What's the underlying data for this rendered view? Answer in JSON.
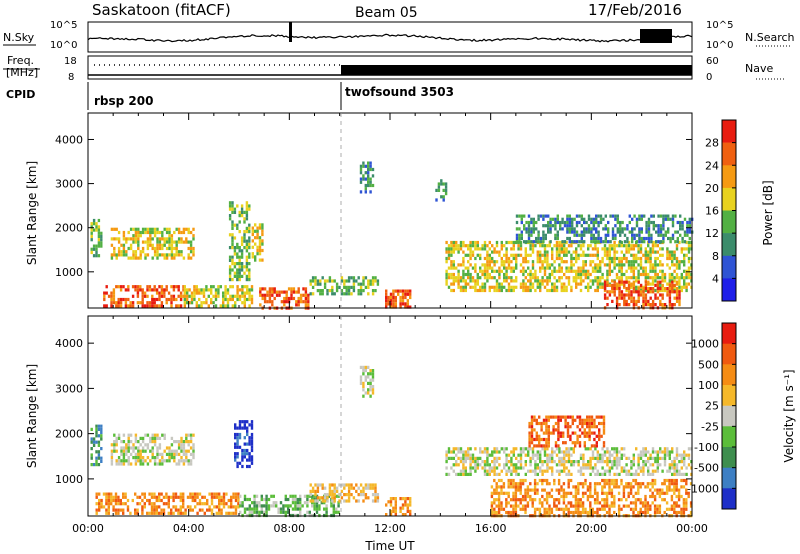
{
  "header": {
    "title": "Saskatoon (fitACF)",
    "beam": "Beam 05",
    "date": "17/Feb/2016"
  },
  "top_panels": {
    "nsky": {
      "left_label": "N.Sky",
      "right_label": "N.Search",
      "left_ticks": [
        "10^5",
        "10^0"
      ],
      "right_ticks": [
        "10^5",
        "10^0"
      ]
    },
    "freq": {
      "left_label_line1": "Freq.",
      "left_label_line2": "[MHz]",
      "left_ticks": [
        "18",
        "8"
      ],
      "right_label": "Nave",
      "right_ticks": [
        "60",
        "0"
      ]
    },
    "cpid": {
      "label": "CPID",
      "segments": [
        {
          "name": "rbsp 200",
          "start_hour": 0
        },
        {
          "name": "twofsound 3503",
          "start_hour": 10
        }
      ]
    }
  },
  "chart_data": [
    {
      "type": "heatmap",
      "quantity": "Power",
      "ylabel": "Slant Range [km]",
      "xlabel": "",
      "x_range_hours": [
        0,
        24
      ],
      "ylim": [
        180,
        4600
      ],
      "yticks": [
        1000,
        2000,
        3000,
        4000
      ],
      "colorbar": {
        "label": "Power [dB]",
        "ticks": [
          "4",
          "8",
          "12",
          "16",
          "20",
          "24",
          "28"
        ],
        "colors": [
          "#1f1fe8",
          "#2f54d4",
          "#3b8c6b",
          "#52b043",
          "#e8d21f",
          "#f59a12",
          "#f06010",
          "#e81c10"
        ]
      },
      "echo_regions": [
        {
          "t": [
            0.1,
            0.55
          ],
          "r": [
            1350,
            2200
          ],
          "level": 3
        },
        {
          "t": [
            0.9,
            4.2
          ],
          "r": [
            1300,
            2000
          ],
          "level": 4
        },
        {
          "t": [
            0.6,
            3.8
          ],
          "r": [
            200,
            700
          ],
          "level": 6
        },
        {
          "t": [
            3.8,
            6.5
          ],
          "r": [
            200,
            700
          ],
          "level": 4
        },
        {
          "t": [
            5.6,
            6.4
          ],
          "r": [
            800,
            2600
          ],
          "level": 3
        },
        {
          "t": [
            6.5,
            6.9
          ],
          "r": [
            1300,
            2100
          ],
          "level": 4
        },
        {
          "t": [
            6.8,
            8.8
          ],
          "r": [
            200,
            650
          ],
          "level": 6
        },
        {
          "t": [
            8.8,
            11.5
          ],
          "r": [
            500,
            900
          ],
          "level": 3
        },
        {
          "t": [
            11.8,
            12.8
          ],
          "r": [
            220,
            600
          ],
          "level": 6
        },
        {
          "t": [
            14.2,
            24.0
          ],
          "r": [
            600,
            1700
          ],
          "level": 4
        },
        {
          "t": [
            20.5,
            23.5
          ],
          "r": [
            200,
            800
          ],
          "level": 6
        },
        {
          "t": [
            17.0,
            24.0
          ],
          "r": [
            1700,
            2300
          ],
          "level": 2
        },
        {
          "t": [
            10.8,
            11.3
          ],
          "r": [
            2800,
            3500
          ],
          "level": 2
        },
        {
          "t": [
            13.8,
            14.2
          ],
          "r": [
            2600,
            3100
          ],
          "level": 2
        }
      ]
    },
    {
      "type": "heatmap",
      "quantity": "Velocity",
      "ylabel": "Slant Range [km]",
      "xlabel": "Time UT",
      "x_range_hours": [
        0,
        24
      ],
      "xticks": [
        "00:00",
        "04:00",
        "08:00",
        "12:00",
        "16:00",
        "20:00",
        "00:00"
      ],
      "ylim": [
        180,
        4600
      ],
      "yticks": [
        1000,
        2000,
        3000,
        4000
      ],
      "colorbar": {
        "label": "Velocity [m s⁻¹]",
        "ticks": [
          "1000",
          "500",
          "100",
          "25",
          "-25",
          "-100",
          "-500",
          "-1000"
        ],
        "colors": [
          "#1e2fc8",
          "#3d7fc4",
          "#3e8e4e",
          "#5bbd3a",
          "#c8c8c0",
          "#f5b82a",
          "#f58c14",
          "#f05a10",
          "#e81c10"
        ]
      },
      "echo_regions": [
        {
          "t": [
            0.1,
            0.55
          ],
          "r": [
            1350,
            2200
          ],
          "level": 2
        },
        {
          "t": [
            0.9,
            4.2
          ],
          "r": [
            1300,
            2000
          ],
          "level": 4
        },
        {
          "t": [
            0.3,
            6.0
          ],
          "r": [
            250,
            700
          ],
          "level": 6
        },
        {
          "t": [
            5.8,
            6.5
          ],
          "r": [
            1300,
            2300
          ],
          "level": 0
        },
        {
          "t": [
            6.0,
            10.0
          ],
          "r": [
            200,
            650
          ],
          "level": 3
        },
        {
          "t": [
            8.8,
            11.5
          ],
          "r": [
            500,
            900
          ],
          "level": 5
        },
        {
          "t": [
            11.8,
            12.8
          ],
          "r": [
            220,
            600
          ],
          "level": 6
        },
        {
          "t": [
            14.2,
            24.0
          ],
          "r": [
            1100,
            1700
          ],
          "level": 4
        },
        {
          "t": [
            16.0,
            24.0
          ],
          "r": [
            200,
            1000
          ],
          "level": 6
        },
        {
          "t": [
            17.5,
            20.5
          ],
          "r": [
            1700,
            2400
          ],
          "level": 7
        },
        {
          "t": [
            10.8,
            11.3
          ],
          "r": [
            2800,
            3500
          ],
          "level": 4
        }
      ]
    }
  ]
}
